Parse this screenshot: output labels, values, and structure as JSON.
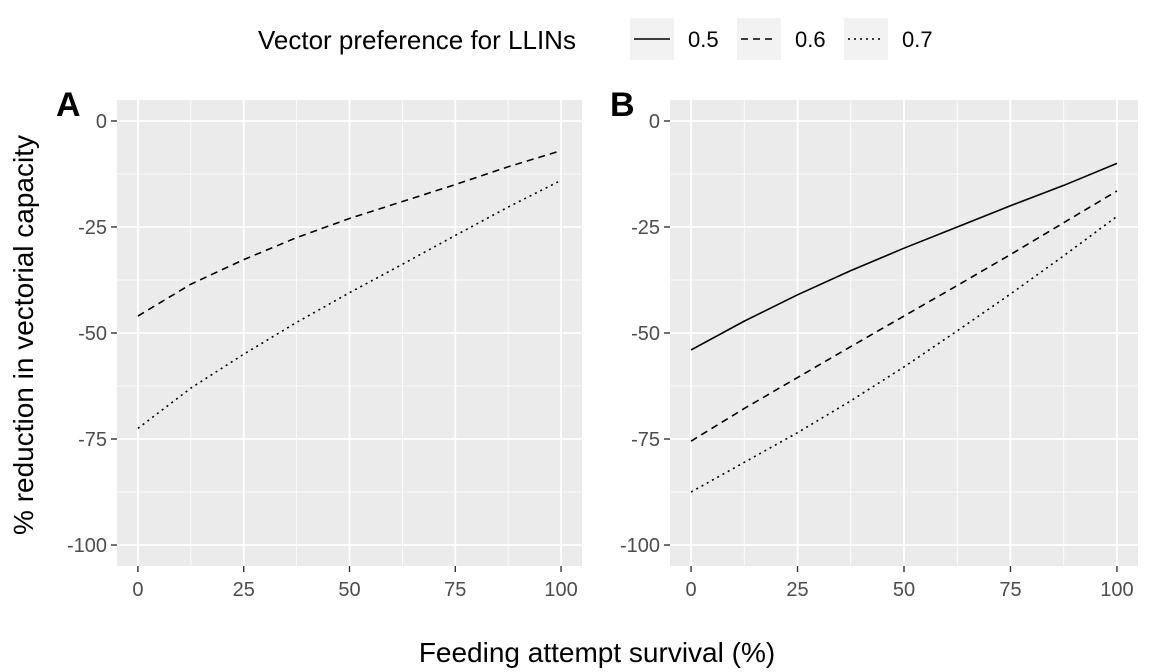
{
  "chart_data": {
    "type": "line",
    "xlabel": "Feeding attempt survival (%)",
    "ylabel": "% reduction in vectorial capacity",
    "legend": {
      "title": "Vector preference for LLINs",
      "position": "top",
      "entries": [
        {
          "label": "0.5",
          "linetype": "solid"
        },
        {
          "label": "0.6",
          "linetype": "dashed"
        },
        {
          "label": "0.7",
          "linetype": "dotted"
        }
      ]
    },
    "grid": true,
    "panels": [
      {
        "label": "A",
        "xlim": [
          0,
          100
        ],
        "ylim": [
          -100,
          0
        ],
        "xticks": [
          0,
          25,
          50,
          75,
          100
        ],
        "yticks": [
          0,
          -25,
          -50,
          -75,
          -100
        ],
        "x": [
          0,
          12.5,
          25,
          37.5,
          50,
          62.5,
          75,
          87.5,
          100
        ],
        "series": [
          {
            "name": "0.6",
            "linetype": "dashed",
            "values": [
              -46,
              -38.5,
              -32.7,
              -27.5,
              -23,
              -19,
              -15,
              -10.8,
              -7
            ]
          },
          {
            "name": "0.7",
            "linetype": "dotted",
            "values": [
              -72.5,
              -63,
              -55,
              -47.5,
              -40.5,
              -33.8,
              -27,
              -20.3,
              -14
            ]
          }
        ]
      },
      {
        "label": "B",
        "xlim": [
          0,
          100
        ],
        "ylim": [
          -100,
          0
        ],
        "xticks": [
          0,
          25,
          50,
          75,
          100
        ],
        "yticks": [
          0,
          -25,
          -50,
          -75,
          -100
        ],
        "x": [
          0,
          12.5,
          25,
          37.5,
          50,
          62.5,
          75,
          87.5,
          100
        ],
        "series": [
          {
            "name": "0.5",
            "linetype": "solid",
            "values": [
              -54,
              -47.2,
              -41,
              -35.3,
              -30,
              -25,
              -20,
              -15.2,
              -10
            ]
          },
          {
            "name": "0.6",
            "linetype": "dashed",
            "values": [
              -75.5,
              -67.8,
              -60.5,
              -53.2,
              -46,
              -38.8,
              -31.5,
              -24,
              -16.5
            ]
          },
          {
            "name": "0.7",
            "linetype": "dotted",
            "values": [
              -87.5,
              -80.5,
              -73.5,
              -66,
              -58,
              -49.5,
              -40.8,
              -31.8,
              -22.5
            ]
          }
        ]
      }
    ]
  }
}
